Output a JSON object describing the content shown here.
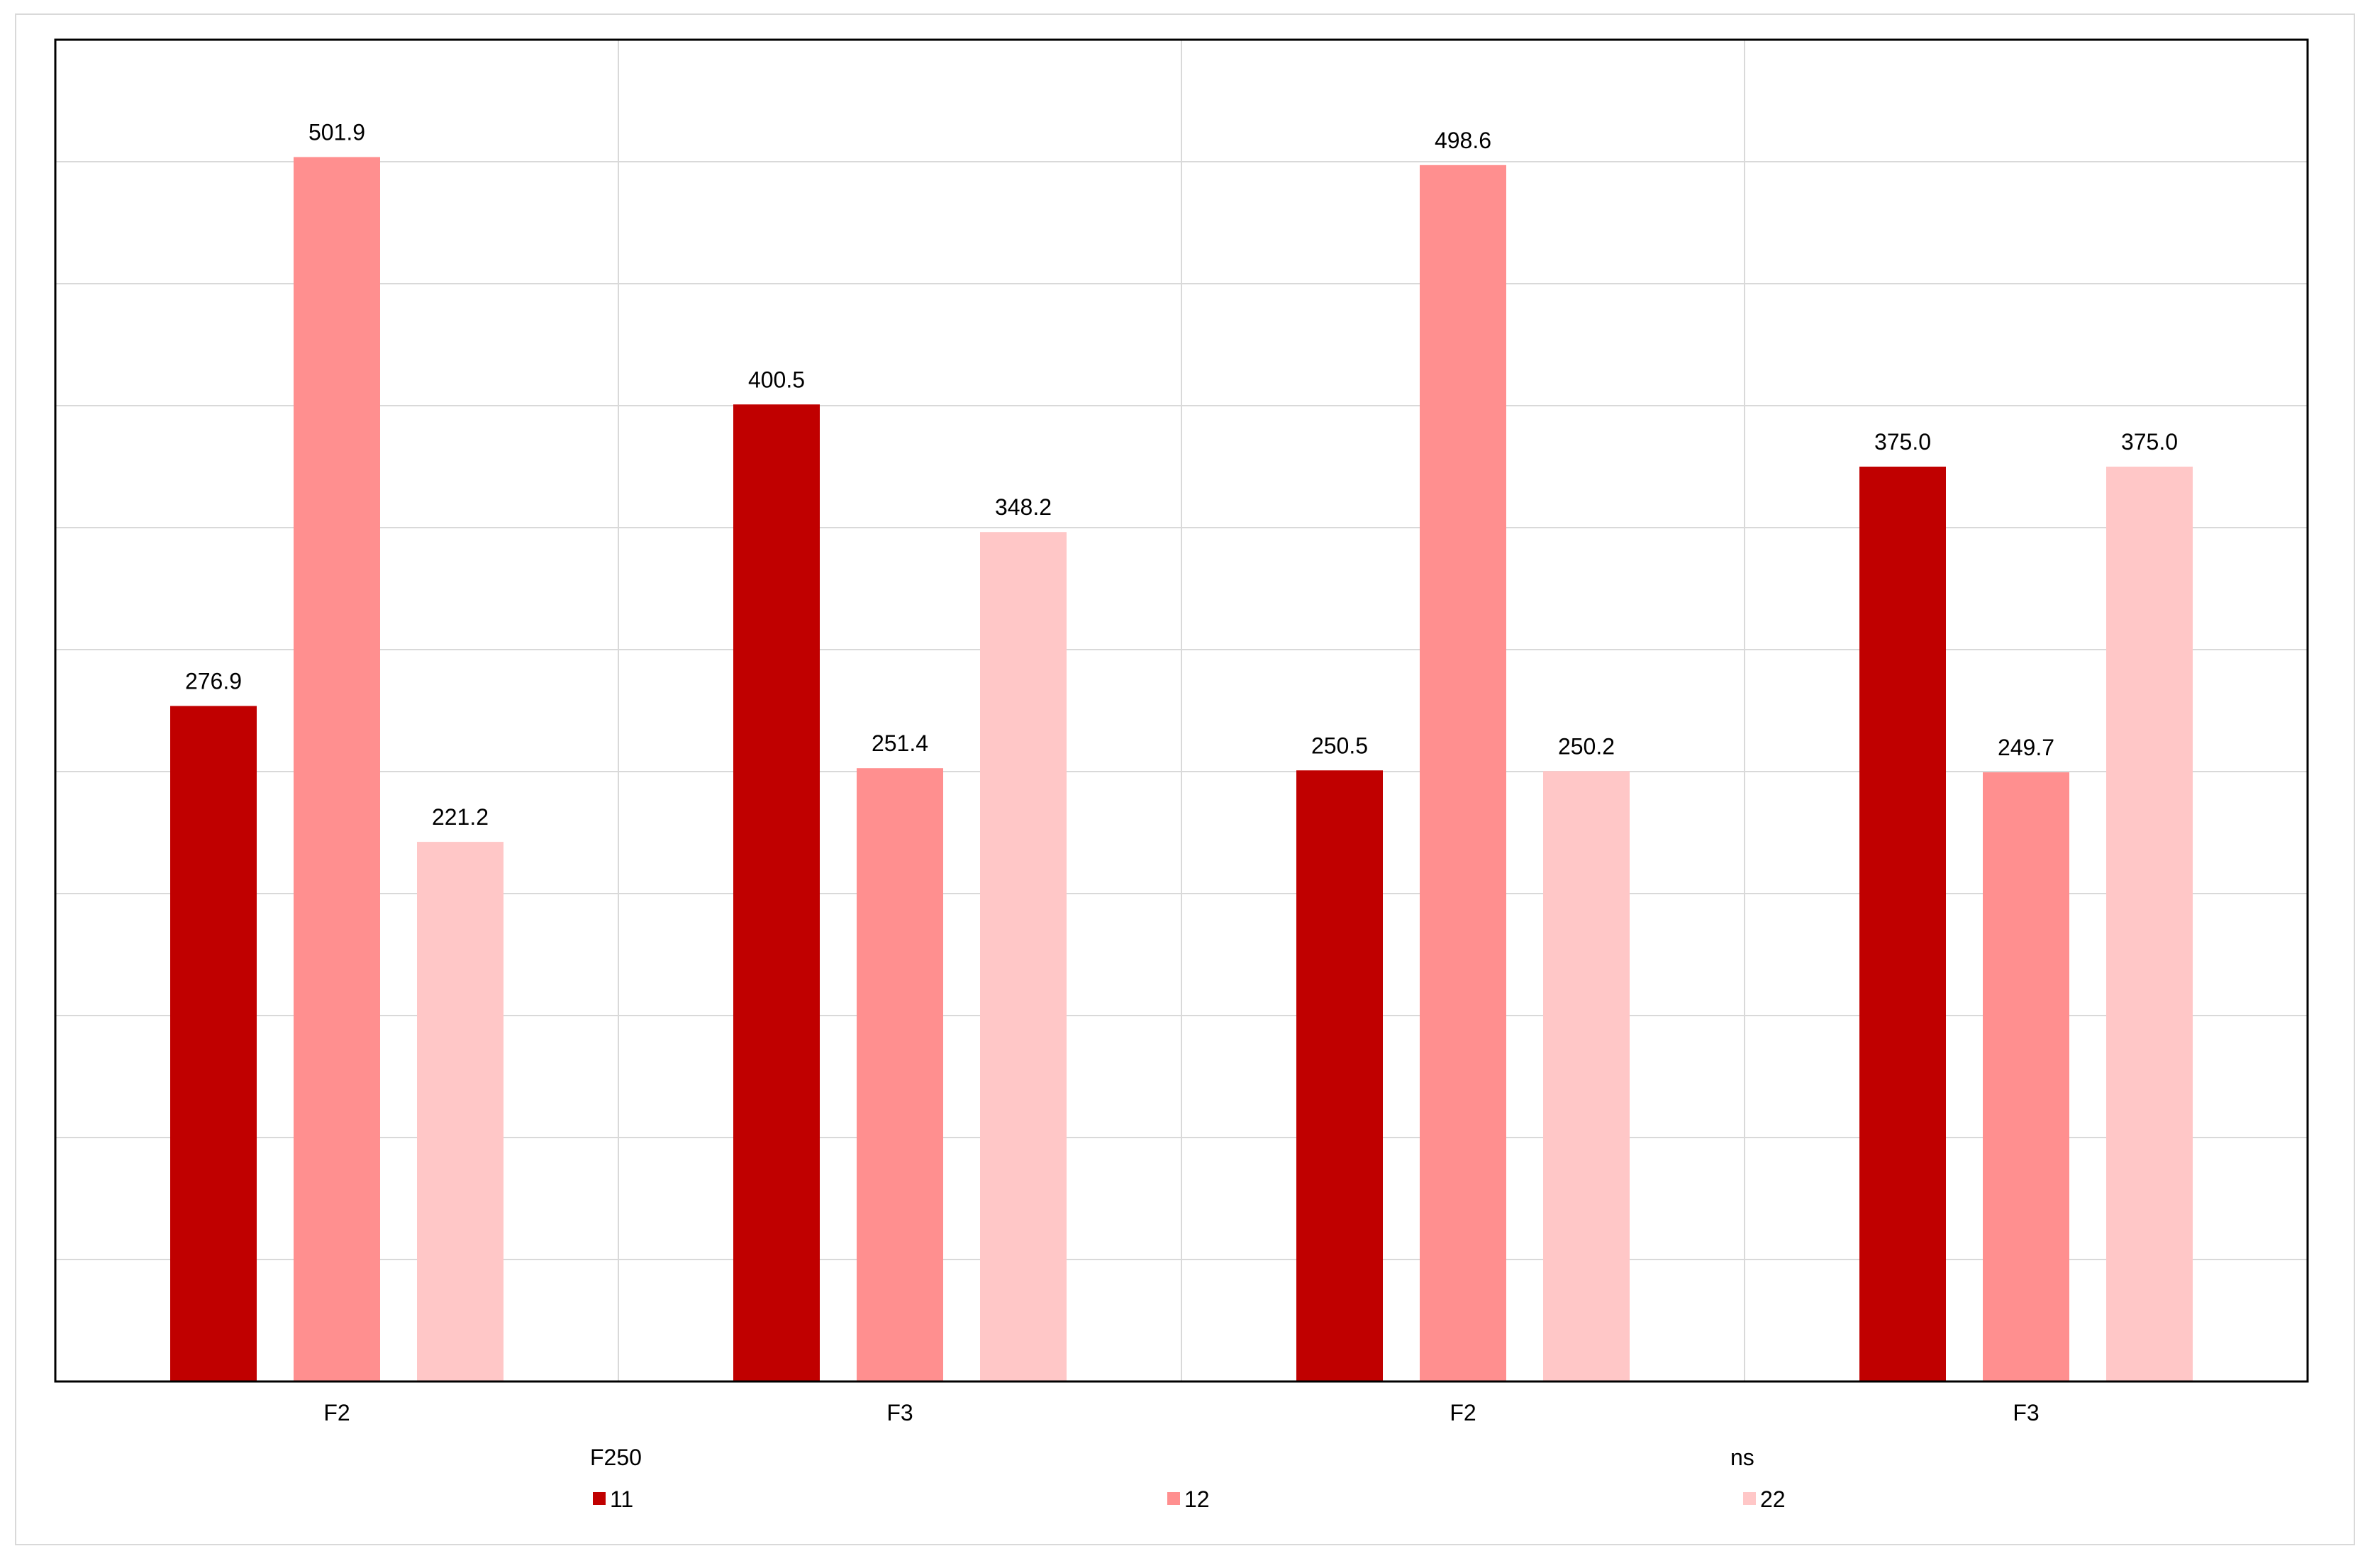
{
  "chart_data": {
    "type": "bar",
    "groups": [
      {
        "name": "F250",
        "categories": [
          "F2",
          "F3"
        ]
      },
      {
        "name": "ns",
        "categories": [
          "F2",
          "F3"
        ]
      }
    ],
    "categories": [
      "F2",
      "F3",
      "F2",
      "F3"
    ],
    "series": [
      {
        "name": "11",
        "color": "#c00000",
        "values": [
          276.9,
          400.5,
          250.5,
          375.0
        ]
      },
      {
        "name": "12",
        "color": "#ff8f8f",
        "values": [
          501.9,
          251.4,
          498.6,
          249.7
        ]
      },
      {
        "name": "22",
        "color": "#ffc7c7",
        "values": [
          221.2,
          348.2,
          250.2,
          375.0
        ]
      }
    ],
    "value_labels": [
      [
        "276.9",
        "400.5",
        "250.5",
        "375.0"
      ],
      [
        "501.9",
        "251.4",
        "498.6",
        "249.7"
      ],
      [
        "221.2",
        "348.2",
        "250.2",
        "375.0"
      ]
    ],
    "ylim": [
      0,
      550
    ],
    "y_gridline_step": 50,
    "grid": true,
    "legend_placement": "bottom",
    "title": "",
    "xlabel": "",
    "ylabel": ""
  }
}
